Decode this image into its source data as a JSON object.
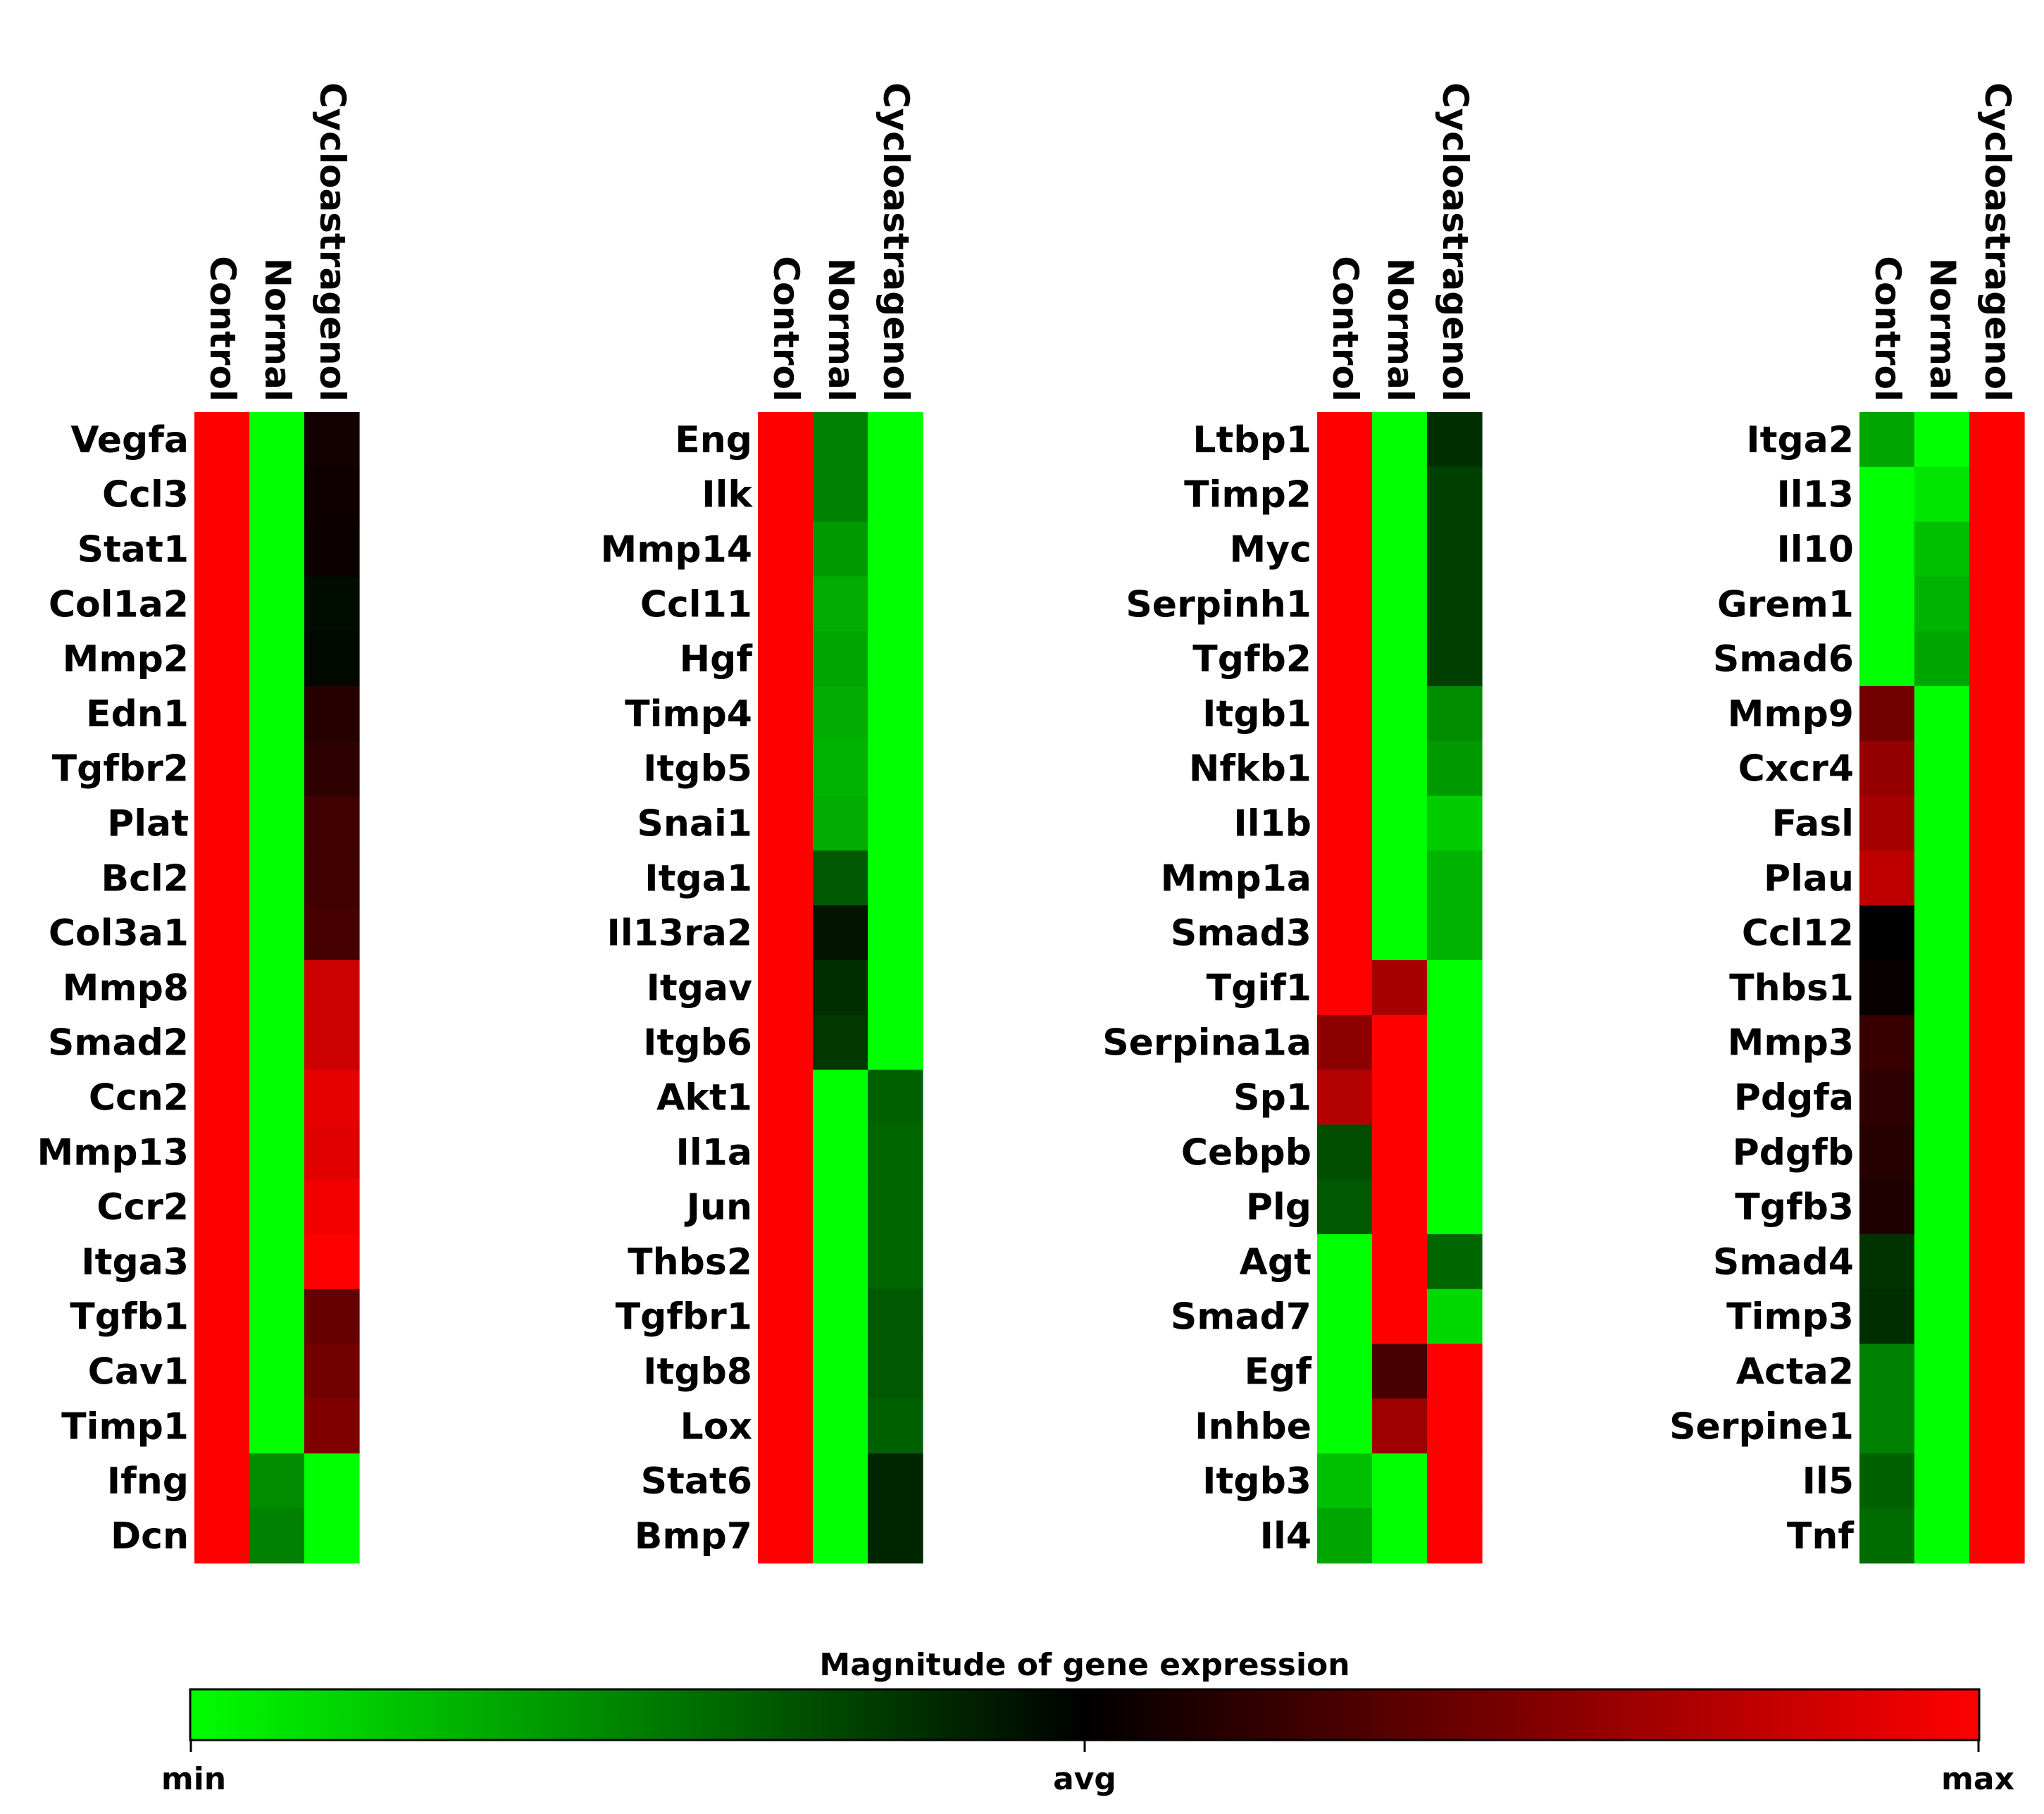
{
  "chart_data": {
    "type": "heatmap",
    "columns": [
      "Control",
      "Normal",
      "Cycloastragenol"
    ],
    "colorscale": {
      "title": "Magnitude of gene expression",
      "min_label": "min",
      "mid_label": "avg",
      "max_label": "max",
      "min_color": "#00ff00",
      "mid_color": "#000000",
      "max_color": "#ff0000"
    },
    "panels": [
      {
        "rows": [
          {
            "gene": "Vegfa",
            "values": [
              1.0,
              -1.0,
              0.08
            ]
          },
          {
            "gene": "Ccl3",
            "values": [
              1.0,
              -1.0,
              0.06
            ]
          },
          {
            "gene": "Stat1",
            "values": [
              1.0,
              -1.0,
              0.05
            ]
          },
          {
            "gene": "Col1a2",
            "values": [
              1.0,
              -1.0,
              -0.05
            ]
          },
          {
            "gene": "Mmp2",
            "values": [
              1.0,
              -1.0,
              -0.03
            ]
          },
          {
            "gene": "Edn1",
            "values": [
              1.0,
              -1.0,
              0.15
            ]
          },
          {
            "gene": "Tgfbr2",
            "values": [
              1.0,
              -1.0,
              0.18
            ]
          },
          {
            "gene": "Plat",
            "values": [
              1.0,
              -1.0,
              0.25
            ]
          },
          {
            "gene": "Bcl2",
            "values": [
              1.0,
              -1.0,
              0.25
            ]
          },
          {
            "gene": "Col3a1",
            "values": [
              1.0,
              -1.0,
              0.28
            ]
          },
          {
            "gene": "Mmp8",
            "values": [
              1.0,
              -1.0,
              0.8
            ]
          },
          {
            "gene": "Smad2",
            "values": [
              1.0,
              -1.0,
              0.8
            ]
          },
          {
            "gene": "Ccn2",
            "values": [
              1.0,
              -1.0,
              0.9
            ]
          },
          {
            "gene": "Mmp13",
            "values": [
              1.0,
              -1.0,
              0.88
            ]
          },
          {
            "gene": "Ccr2",
            "values": [
              1.0,
              -1.0,
              0.95
            ]
          },
          {
            "gene": "Itga3",
            "values": [
              1.0,
              -1.0,
              1.0
            ]
          },
          {
            "gene": "Tgfb1",
            "values": [
              1.0,
              -1.0,
              0.4
            ]
          },
          {
            "gene": "Cav1",
            "values": [
              1.0,
              -1.0,
              0.45
            ]
          },
          {
            "gene": "Timp1",
            "values": [
              1.0,
              -1.0,
              0.5
            ]
          },
          {
            "gene": "Ifng",
            "values": [
              1.0,
              -0.55,
              -1.0
            ]
          },
          {
            "gene": "Dcn",
            "values": [
              1.0,
              -0.5,
              -1.0
            ]
          }
        ]
      },
      {
        "rows": [
          {
            "gene": "Eng",
            "values": [
              1.0,
              -0.5,
              -1.0
            ]
          },
          {
            "gene": "Ilk",
            "values": [
              1.0,
              -0.5,
              -1.0
            ]
          },
          {
            "gene": "Mmp14",
            "values": [
              1.0,
              -0.6,
              -1.0
            ]
          },
          {
            "gene": "Ccl11",
            "values": [
              1.0,
              -0.68,
              -1.0
            ]
          },
          {
            "gene": "Hgf",
            "values": [
              1.0,
              -0.65,
              -1.0
            ]
          },
          {
            "gene": "Timp4",
            "values": [
              1.0,
              -0.68,
              -1.0
            ]
          },
          {
            "gene": "Itgb5",
            "values": [
              1.0,
              -0.7,
              -1.0
            ]
          },
          {
            "gene": "Snai1",
            "values": [
              1.0,
              -0.68,
              -1.0
            ]
          },
          {
            "gene": "Itga1",
            "values": [
              1.0,
              -0.35,
              -1.0
            ]
          },
          {
            "gene": "Il13ra2",
            "values": [
              1.0,
              -0.08,
              -1.0
            ]
          },
          {
            "gene": "Itgav",
            "values": [
              1.0,
              -0.18,
              -1.0
            ]
          },
          {
            "gene": "Itgb6",
            "values": [
              1.0,
              -0.22,
              -1.0
            ]
          },
          {
            "gene": "Akt1",
            "values": [
              1.0,
              -1.0,
              -0.38
            ]
          },
          {
            "gene": "Il1a",
            "values": [
              1.0,
              -1.0,
              -0.4
            ]
          },
          {
            "gene": "Jun",
            "values": [
              1.0,
              -1.0,
              -0.4
            ]
          },
          {
            "gene": "Thbs2",
            "values": [
              1.0,
              -1.0,
              -0.4
            ]
          },
          {
            "gene": "Tgfbr1",
            "values": [
              1.0,
              -1.0,
              -0.35
            ]
          },
          {
            "gene": "Itgb8",
            "values": [
              1.0,
              -1.0,
              -0.35
            ]
          },
          {
            "gene": "Lox",
            "values": [
              1.0,
              -1.0,
              -0.38
            ]
          },
          {
            "gene": "Stat6",
            "values": [
              1.0,
              -1.0,
              -0.15
            ]
          },
          {
            "gene": "Bmp7",
            "values": [
              1.0,
              -1.0,
              -0.15
            ]
          }
        ]
      },
      {
        "rows": [
          {
            "gene": "Ltbp1",
            "values": [
              1.0,
              -1.0,
              -0.18
            ]
          },
          {
            "gene": "Timp2",
            "values": [
              1.0,
              -1.0,
              -0.25
            ]
          },
          {
            "gene": "Myc",
            "values": [
              1.0,
              -1.0,
              -0.25
            ]
          },
          {
            "gene": "Serpinh1",
            "values": [
              1.0,
              -1.0,
              -0.25
            ]
          },
          {
            "gene": "Tgfb2",
            "values": [
              1.0,
              -1.0,
              -0.25
            ]
          },
          {
            "gene": "Itgb1",
            "values": [
              1.0,
              -1.0,
              -0.55
            ]
          },
          {
            "gene": "Nfkb1",
            "values": [
              1.0,
              -1.0,
              -0.6
            ]
          },
          {
            "gene": "Il1b",
            "values": [
              1.0,
              -1.0,
              -0.8
            ]
          },
          {
            "gene": "Mmp1a",
            "values": [
              1.0,
              -1.0,
              -0.7
            ]
          },
          {
            "gene": "Smad3",
            "values": [
              1.0,
              -1.0,
              -0.7
            ]
          },
          {
            "gene": "Tgif1",
            "values": [
              1.0,
              0.65,
              -1.0
            ]
          },
          {
            "gene": "Serpina1a",
            "values": [
              0.55,
              1.0,
              -1.0
            ]
          },
          {
            "gene": "Sp1",
            "values": [
              0.7,
              1.0,
              -1.0
            ]
          },
          {
            "gene": "Cebpb",
            "values": [
              -0.3,
              1.0,
              -1.0
            ]
          },
          {
            "gene": "Plg",
            "values": [
              -0.35,
              1.0,
              -1.0
            ]
          },
          {
            "gene": "Agt",
            "values": [
              -1.0,
              1.0,
              -0.4
            ]
          },
          {
            "gene": "Smad7",
            "values": [
              -1.0,
              1.0,
              -0.85
            ]
          },
          {
            "gene": "Egf",
            "values": [
              -1.0,
              0.28,
              1.0
            ]
          },
          {
            "gene": "Inhbe",
            "values": [
              -1.0,
              0.62,
              1.0
            ]
          },
          {
            "gene": "Itgb3",
            "values": [
              -0.75,
              -1.0,
              1.0
            ]
          },
          {
            "gene": "Il4",
            "values": [
              -0.65,
              -1.0,
              1.0
            ]
          }
        ]
      },
      {
        "rows": [
          {
            "gene": "Itga2",
            "values": [
              -0.65,
              -1.0,
              1.0
            ]
          },
          {
            "gene": "Il13",
            "values": [
              -1.0,
              -0.9,
              1.0
            ]
          },
          {
            "gene": "Il10",
            "values": [
              -1.0,
              -0.75,
              1.0
            ]
          },
          {
            "gene": "Grem1",
            "values": [
              -1.0,
              -0.7,
              1.0
            ]
          },
          {
            "gene": "Smad6",
            "values": [
              -1.0,
              -0.65,
              1.0
            ]
          },
          {
            "gene": "Mmp9",
            "values": [
              0.45,
              -1.0,
              1.0
            ]
          },
          {
            "gene": "Cxcr4",
            "values": [
              0.58,
              -1.0,
              1.0
            ]
          },
          {
            "gene": "Fasl",
            "values": [
              0.65,
              -1.0,
              1.0
            ]
          },
          {
            "gene": "Plau",
            "values": [
              0.75,
              -1.0,
              1.0
            ]
          },
          {
            "gene": "Ccl12",
            "values": [
              0.0,
              -1.0,
              1.0
            ]
          },
          {
            "gene": "Thbs1",
            "values": [
              0.03,
              -1.0,
              1.0
            ]
          },
          {
            "gene": "Mmp3",
            "values": [
              0.22,
              -1.0,
              1.0
            ]
          },
          {
            "gene": "Pdgfa",
            "values": [
              0.18,
              -1.0,
              1.0
            ]
          },
          {
            "gene": "Pdgfb",
            "values": [
              0.15,
              -1.0,
              1.0
            ]
          },
          {
            "gene": "Tgfb3",
            "values": [
              0.12,
              -1.0,
              1.0
            ]
          },
          {
            "gene": "Smad4",
            "values": [
              -0.2,
              -1.0,
              1.0
            ]
          },
          {
            "gene": "Timp3",
            "values": [
              -0.18,
              -1.0,
              1.0
            ]
          },
          {
            "gene": "Acta2",
            "values": [
              -0.5,
              -1.0,
              1.0
            ]
          },
          {
            "gene": "Serpine1",
            "values": [
              -0.5,
              -1.0,
              1.0
            ]
          },
          {
            "gene": "Il5",
            "values": [
              -0.38,
              -1.0,
              1.0
            ]
          },
          {
            "gene": "Tnf",
            "values": [
              -0.42,
              -1.0,
              1.0
            ]
          }
        ]
      }
    ]
  }
}
